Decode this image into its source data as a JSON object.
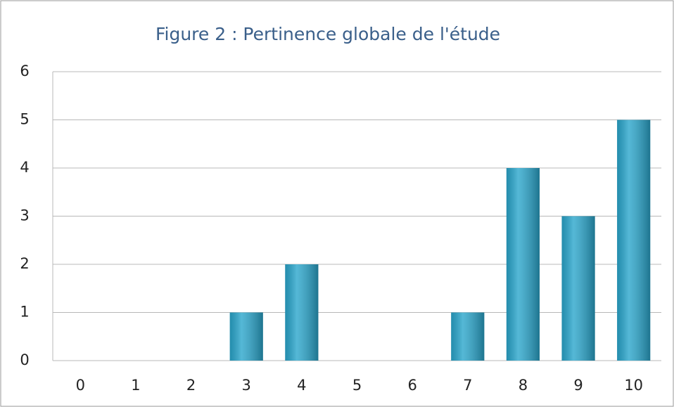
{
  "chart_data": {
    "type": "bar",
    "title": "Figure 2 : Pertinence globale de l'étude",
    "categories": [
      "0",
      "1",
      "2",
      "3",
      "4",
      "5",
      "6",
      "7",
      "8",
      "9",
      "10"
    ],
    "values": [
      0,
      0,
      0,
      1,
      2,
      0,
      0,
      1,
      4,
      3,
      5
    ],
    "color": "#2aa6cc",
    "ylim": [
      0,
      6
    ],
    "yticks": [
      0,
      1,
      2,
      3,
      4,
      5,
      6
    ],
    "grid": true
  }
}
